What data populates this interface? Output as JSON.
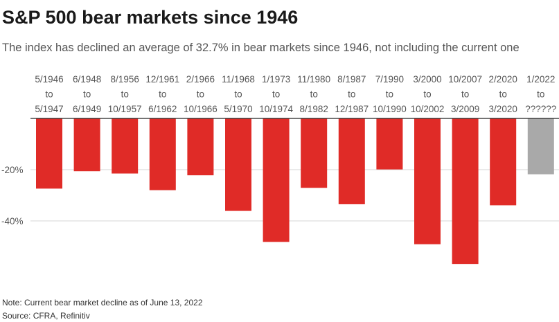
{
  "title": "S&P 500 bear markets since 1946",
  "subtitle": "The index has declined an average of 32.7% in bear markets since 1946, not including the current one",
  "note": "Note: Current bear market decline as of June 13, 2022",
  "source": "Source: CFRA, Refinitiv",
  "colors": {
    "historical": "#e02b27",
    "current": "#a9a9a9",
    "grid": "#d4d4d4",
    "zero": "#222222"
  },
  "chart_data": {
    "type": "bar",
    "title": "S&P 500 bear markets since 1946",
    "xlabel": "",
    "ylabel": "",
    "ylim": [
      -57,
      0
    ],
    "grid": true,
    "yticks": [
      {
        "value": -20,
        "label": "-20%"
      },
      {
        "value": -40,
        "label": "-40%"
      }
    ],
    "categories": [
      {
        "start": "5/1946",
        "to": "to",
        "end": "5/1947"
      },
      {
        "start": "6/1948",
        "to": "to",
        "end": "6/1949"
      },
      {
        "start": "8/1956",
        "to": "to",
        "end": "10/1957"
      },
      {
        "start": "12/1961",
        "to": "to",
        "end": "6/1962"
      },
      {
        "start": "2/1966",
        "to": "to",
        "end": "10/1966"
      },
      {
        "start": "11/1968",
        "to": "to",
        "end": "5/1970"
      },
      {
        "start": "1/1973",
        "to": "to",
        "end": "10/1974"
      },
      {
        "start": "11/1980",
        "to": "to",
        "end": "8/1982"
      },
      {
        "start": "8/1987",
        "to": "to",
        "end": "12/1987"
      },
      {
        "start": "7/1990",
        "to": "to",
        "end": "10/1990"
      },
      {
        "start": "3/2000",
        "to": "to",
        "end": "10/2002"
      },
      {
        "start": "10/2007",
        "to": "to",
        "end": "3/2009"
      },
      {
        "start": "2/2020",
        "to": "to",
        "end": "3/2020"
      },
      {
        "start": "1/2022",
        "to": "to",
        "end": "??????"
      }
    ],
    "values": [
      -27.4,
      -20.6,
      -21.5,
      -28.0,
      -22.2,
      -36.1,
      -48.2,
      -27.1,
      -33.5,
      -19.9,
      -49.1,
      -56.8,
      -33.9,
      -21.8
    ],
    "current_index": 13
  }
}
